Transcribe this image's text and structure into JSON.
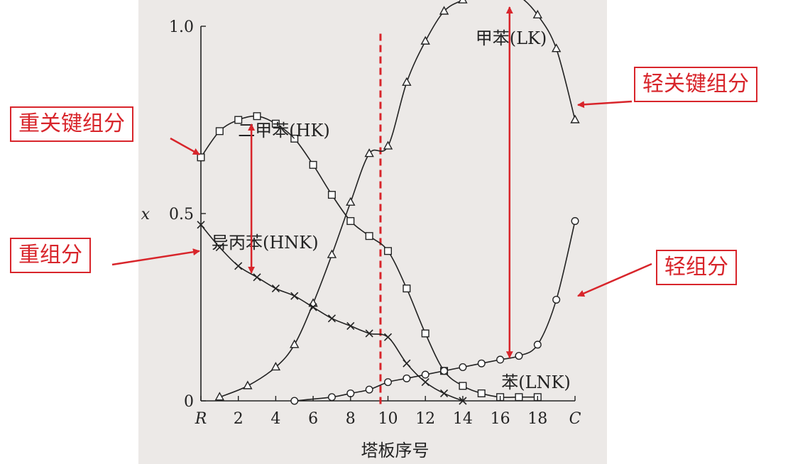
{
  "callouts": {
    "heavy_key": "重关键组分",
    "heavy": "重组分",
    "light_key": "轻关键组分",
    "light": "轻组分"
  },
  "colors": {
    "callout": "#d8252b",
    "divider": "#d8252b",
    "curve": "#222222"
  },
  "chart_data": {
    "type": "line",
    "xlabel": "塔板序号",
    "ylabel": "x",
    "x_ticks": [
      "R",
      "2",
      "4",
      "6",
      "8",
      "10",
      "12",
      "14",
      "16",
      "18",
      "C"
    ],
    "y_ticks": [
      "0",
      "0.5",
      "1.0"
    ],
    "xlim": [
      0,
      20
    ],
    "ylim": [
      0,
      1.0
    ],
    "divider_x": 9.6,
    "series": [
      {
        "name": "甲苯(LK)",
        "marker": "triangle",
        "x": [
          1,
          2.5,
          4,
          5,
          6,
          7,
          8,
          9,
          10,
          11,
          12,
          13,
          14,
          15,
          16,
          17,
          18,
          19,
          20
        ],
        "y": [
          0.01,
          0.04,
          0.09,
          0.15,
          0.26,
          0.39,
          0.53,
          0.66,
          0.68,
          0.85,
          0.96,
          1.04,
          1.07,
          1.09,
          1.09,
          1.08,
          1.03,
          0.94,
          0.75
        ]
      },
      {
        "name": "二甲苯(HK)",
        "marker": "square",
        "x": [
          0,
          1,
          2,
          3,
          4,
          5,
          6,
          7,
          8,
          9,
          10,
          11,
          12,
          13,
          14,
          15,
          16,
          17,
          18
        ],
        "y": [
          0.65,
          0.72,
          0.75,
          0.76,
          0.74,
          0.7,
          0.63,
          0.55,
          0.48,
          0.44,
          0.4,
          0.3,
          0.18,
          0.08,
          0.04,
          0.02,
          0.01,
          0.01,
          0.01
        ]
      },
      {
        "name": "异丙苯(HNK)",
        "marker": "x",
        "x": [
          0,
          1,
          2,
          3,
          4,
          5,
          6,
          7,
          8,
          9,
          10,
          11,
          12,
          13,
          14
        ],
        "y": [
          0.47,
          0.41,
          0.36,
          0.33,
          0.3,
          0.28,
          0.25,
          0.22,
          0.2,
          0.18,
          0.17,
          0.1,
          0.05,
          0.02,
          0.0
        ]
      },
      {
        "name": "苯(LNK)",
        "marker": "circle",
        "x": [
          5,
          7,
          8,
          9,
          10,
          11,
          12,
          13,
          14,
          15,
          16,
          17,
          18,
          19,
          20
        ],
        "y": [
          0.0,
          0.01,
          0.02,
          0.03,
          0.05,
          0.06,
          0.07,
          0.08,
          0.09,
          0.1,
          0.11,
          0.12,
          0.15,
          0.27,
          0.48
        ]
      }
    ]
  }
}
